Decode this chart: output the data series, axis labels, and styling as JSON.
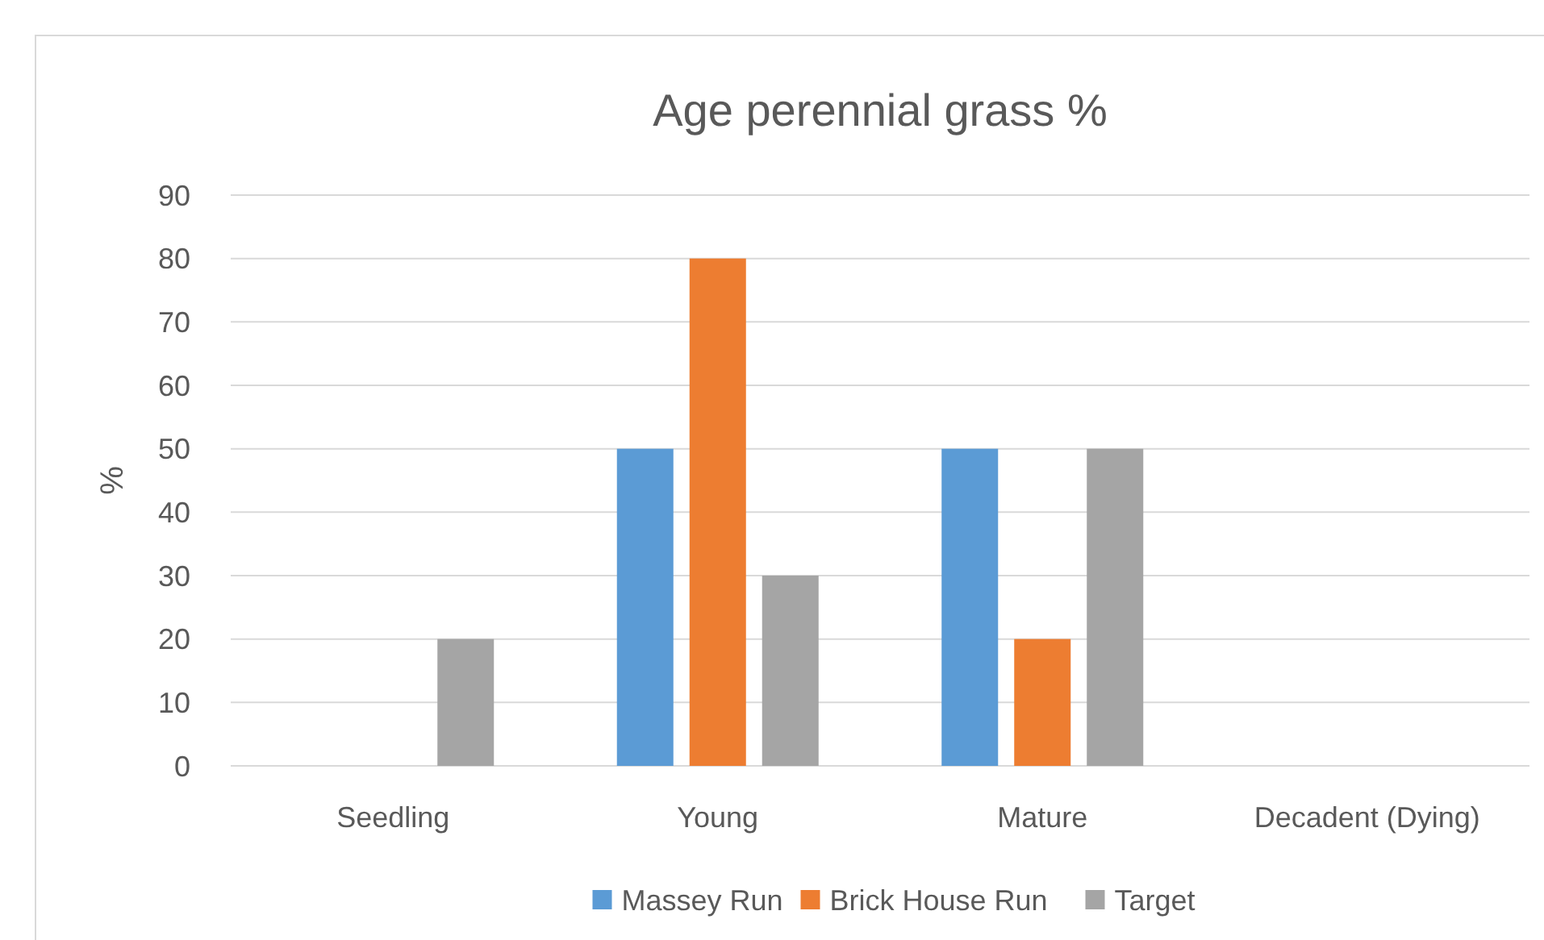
{
  "chart_data": {
    "type": "bar",
    "title": "Age perennial grass %",
    "ylabel": "%",
    "categories": [
      "Seedling",
      "Young",
      "Mature",
      "Decadent (Dying)"
    ],
    "series": [
      {
        "name": "Massey Run",
        "color": "#5b9bd5",
        "values": [
          0,
          50,
          50,
          0
        ]
      },
      {
        "name": "Brick House Run",
        "color": "#ed7d31",
        "values": [
          0,
          80,
          20,
          0
        ]
      },
      {
        "name": "Target",
        "color": "#a5a5a5",
        "values": [
          20,
          30,
          50,
          0
        ]
      }
    ],
    "ylim": [
      0,
      90
    ],
    "yticks": [
      0,
      10,
      20,
      30,
      40,
      50,
      60,
      70,
      80,
      90
    ],
    "grid": "y",
    "legend": "bottom"
  }
}
